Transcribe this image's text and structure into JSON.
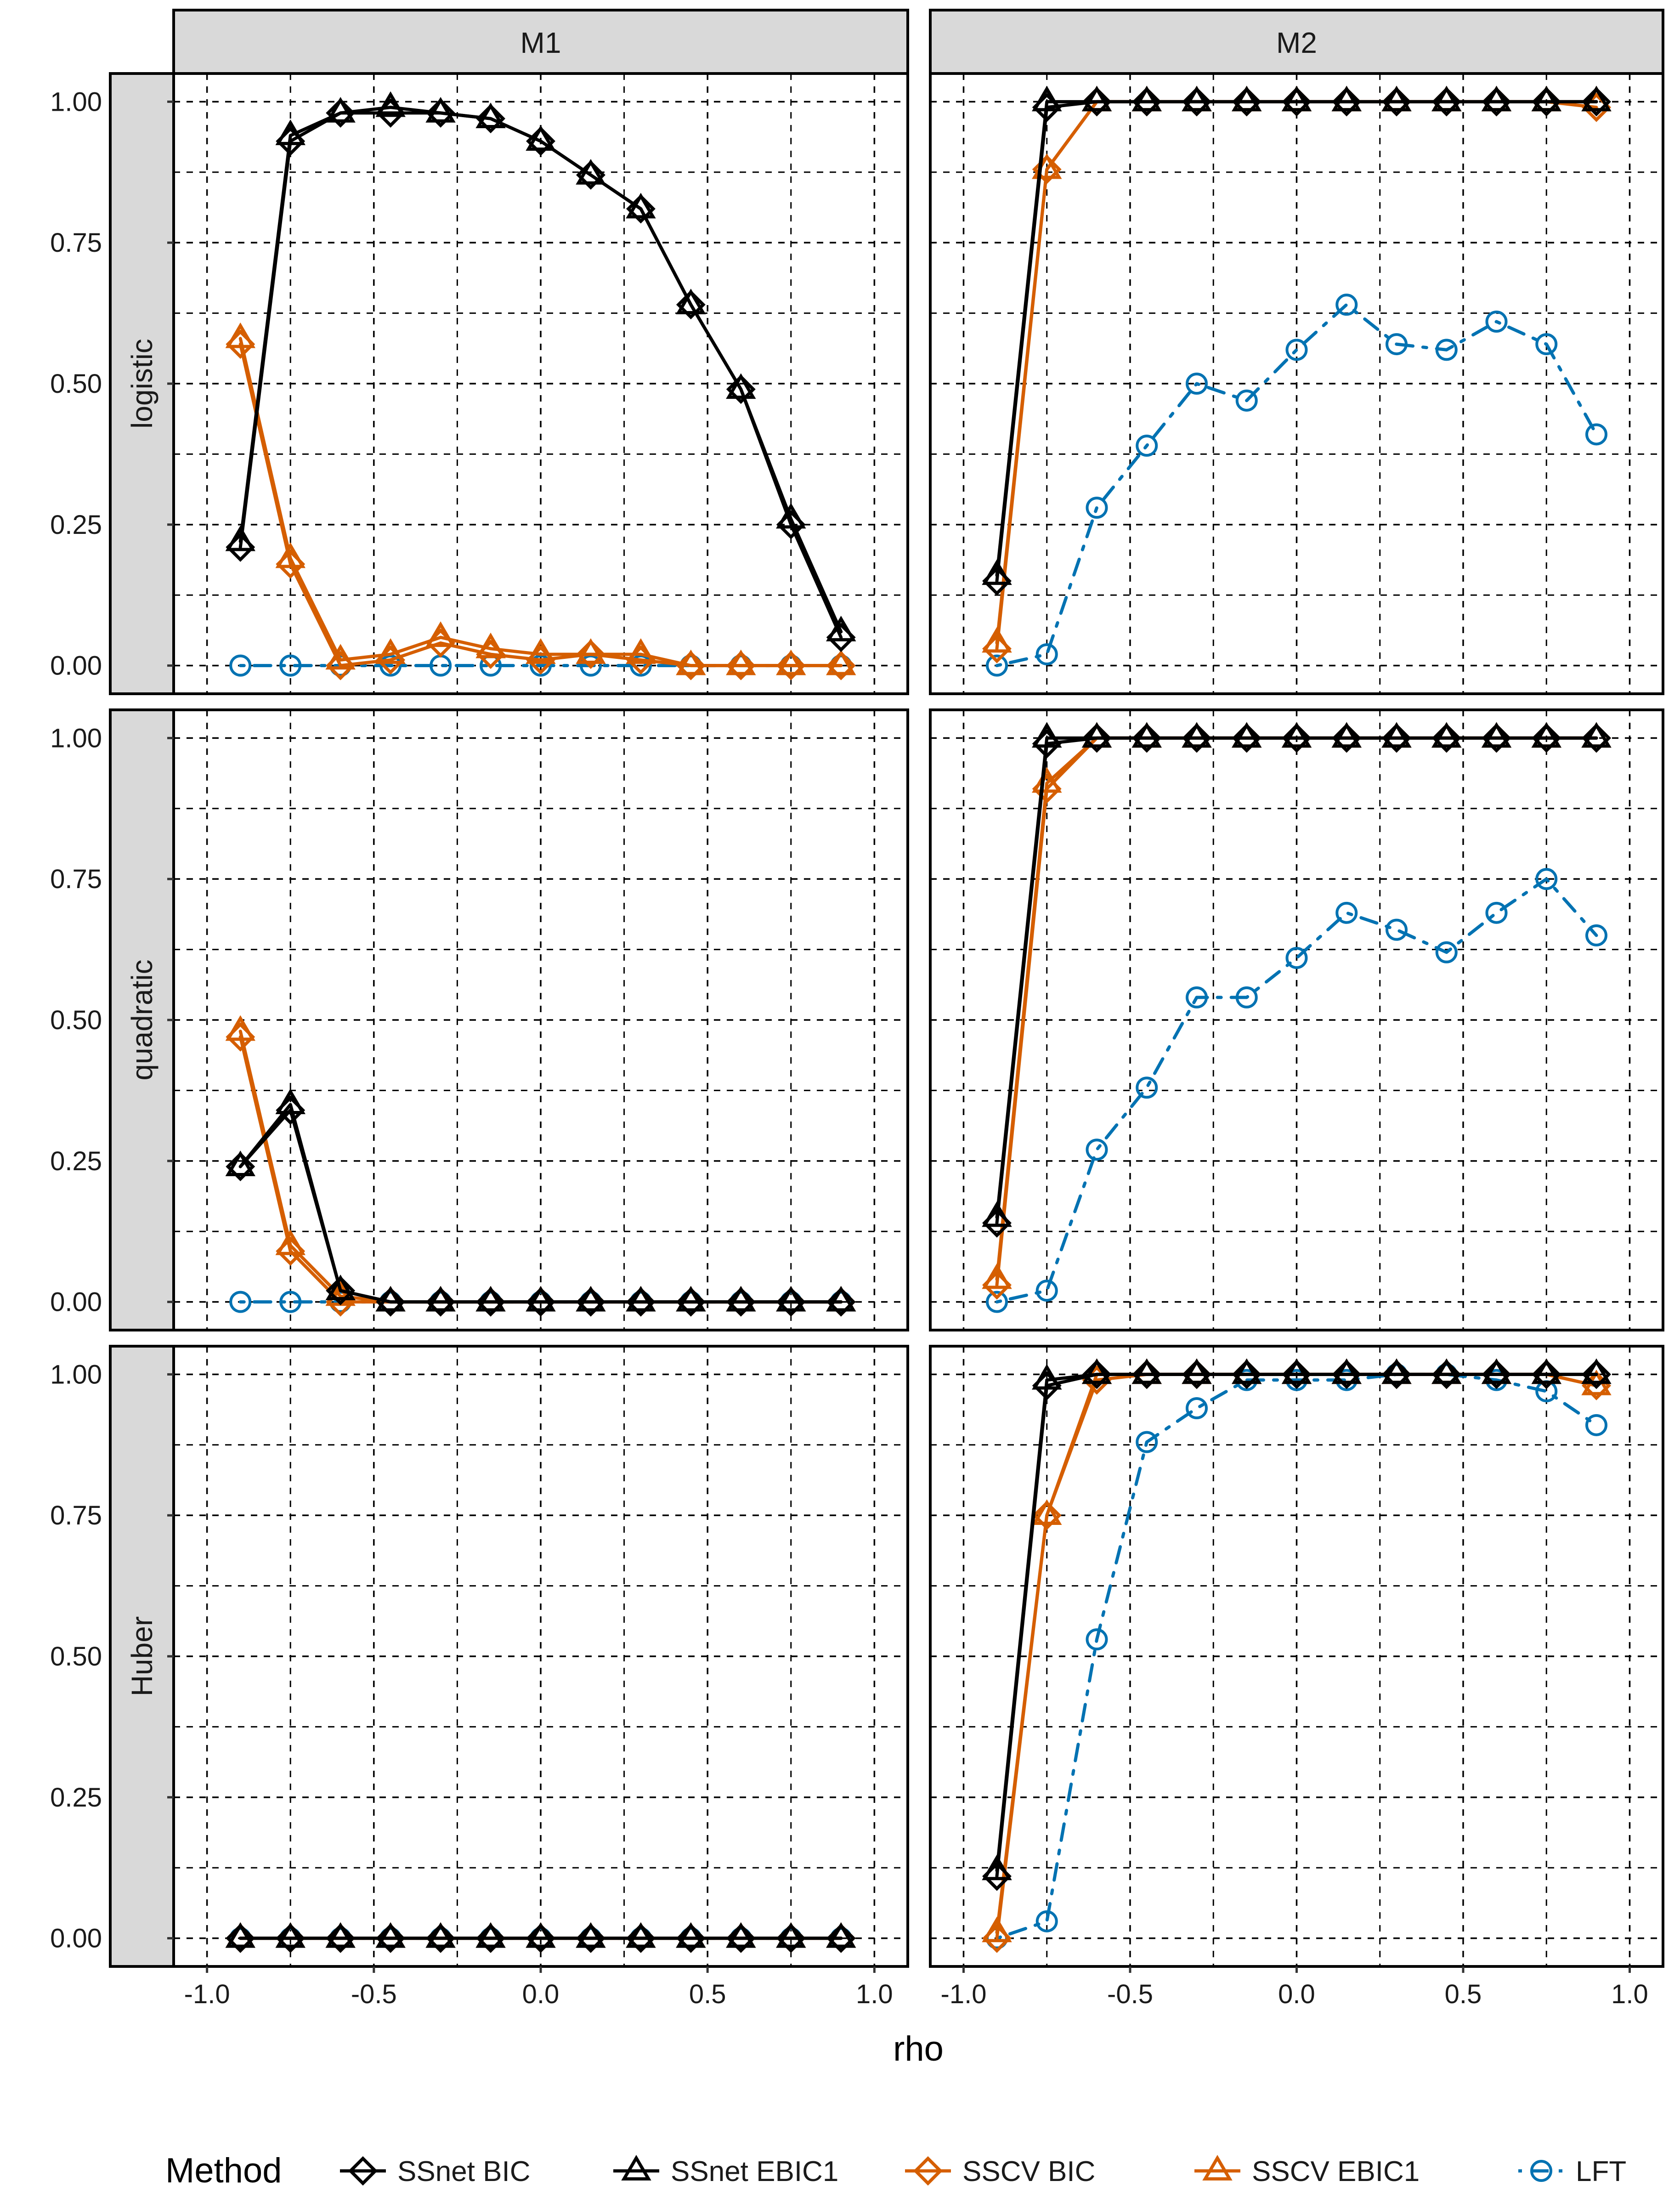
{
  "chart_data": {
    "type": "line",
    "facets": {
      "columns": [
        "M1",
        "M2"
      ],
      "rows": [
        "logistic",
        "quadratic",
        "Huber"
      ]
    },
    "x": [
      -0.9,
      -0.75,
      -0.6,
      -0.45,
      -0.3,
      -0.15,
      0.0,
      0.15,
      0.3,
      0.45,
      0.6,
      0.75,
      0.9
    ],
    "xlabel": "rho",
    "ylabel": "",
    "xlim": [
      -1.1,
      1.1
    ],
    "ylim": [
      -0.05,
      1.05
    ],
    "x_ticks": [
      -1.0,
      -0.5,
      0.0,
      0.5,
      1.0
    ],
    "x_tick_labels": [
      "-1.0",
      "-0.5",
      "0.0",
      "0.5",
      "1.0"
    ],
    "y_ticks": [
      0.0,
      0.25,
      0.5,
      0.75,
      1.0
    ],
    "y_tick_labels": [
      "0.00",
      "0.25",
      "0.50",
      "0.75",
      "1.00"
    ],
    "grid": "dashed major and minor",
    "legend": {
      "position": "bottom",
      "title": "Method",
      "entries": [
        "SSnet BIC",
        "SSnet EBIC1",
        "SSCV BIC",
        "SSCV EBIC1",
        "LFT"
      ]
    },
    "colors": {
      "SSnet": "#000000",
      "SSCV": "#D55E00",
      "LFT": "#0072B2",
      "strip_bg": "#D9D9D9"
    },
    "panels": [
      {
        "row": "logistic",
        "column": "M1",
        "series": [
          {
            "name": "SSnet BIC",
            "values": [
              0.21,
              0.93,
              0.98,
              0.98,
              0.98,
              0.97,
              0.93,
              0.87,
              0.81,
              0.64,
              0.49,
              0.25,
              0.05
            ]
          },
          {
            "name": "SSnet EBIC1",
            "values": [
              0.22,
              0.94,
              0.98,
              0.99,
              0.98,
              0.97,
              0.93,
              0.87,
              0.81,
              0.64,
              0.49,
              0.26,
              0.06
            ]
          },
          {
            "name": "SSCV BIC",
            "values": [
              0.57,
              0.18,
              0.0,
              0.01,
              0.04,
              0.02,
              0.01,
              0.02,
              0.01,
              0.0,
              0.0,
              0.0,
              0.0
            ]
          },
          {
            "name": "SSCV EBIC1",
            "values": [
              0.58,
              0.19,
              0.01,
              0.02,
              0.05,
              0.03,
              0.02,
              0.02,
              0.02,
              0.0,
              0.0,
              0.0,
              0.0
            ]
          },
          {
            "name": "LFT",
            "values": [
              0.0,
              0.0,
              0.0,
              0.0,
              0.0,
              0.0,
              0.0,
              0.0,
              0.0,
              0.0,
              0.0,
              0.0,
              0.0
            ]
          }
        ]
      },
      {
        "row": "logistic",
        "column": "M2",
        "series": [
          {
            "name": "SSnet BIC",
            "values": [
              0.15,
              0.99,
              1.0,
              1.0,
              1.0,
              1.0,
              1.0,
              1.0,
              1.0,
              1.0,
              1.0,
              1.0,
              1.0
            ]
          },
          {
            "name": "SSnet EBIC1",
            "values": [
              0.16,
              1.0,
              1.0,
              1.0,
              1.0,
              1.0,
              1.0,
              1.0,
              1.0,
              1.0,
              1.0,
              1.0,
              1.0
            ]
          },
          {
            "name": "SSCV BIC",
            "values": [
              0.03,
              0.88,
              1.0,
              1.0,
              1.0,
              1.0,
              1.0,
              1.0,
              1.0,
              1.0,
              1.0,
              1.0,
              0.99
            ]
          },
          {
            "name": "SSCV EBIC1",
            "values": [
              0.04,
              0.88,
              1.0,
              1.0,
              1.0,
              1.0,
              1.0,
              1.0,
              1.0,
              1.0,
              1.0,
              1.0,
              1.0
            ]
          },
          {
            "name": "LFT",
            "values": [
              0.0,
              0.02,
              0.28,
              0.39,
              0.5,
              0.47,
              0.56,
              0.64,
              0.57,
              0.56,
              0.61,
              0.57,
              0.41
            ]
          }
        ]
      },
      {
        "row": "quadratic",
        "column": "M1",
        "series": [
          {
            "name": "SSnet BIC",
            "values": [
              0.24,
              0.34,
              0.02,
              0.0,
              0.0,
              0.0,
              0.0,
              0.0,
              0.0,
              0.0,
              0.0,
              0.0,
              0.0
            ]
          },
          {
            "name": "SSnet EBIC1",
            "values": [
              0.24,
              0.35,
              0.02,
              0.0,
              0.0,
              0.0,
              0.0,
              0.0,
              0.0,
              0.0,
              0.0,
              0.0,
              0.0
            ]
          },
          {
            "name": "SSCV BIC",
            "values": [
              0.47,
              0.09,
              0.0,
              0.0,
              0.0,
              0.0,
              0.0,
              0.0,
              0.0,
              0.0,
              0.0,
              0.0,
              0.0
            ]
          },
          {
            "name": "SSCV EBIC1",
            "values": [
              0.48,
              0.1,
              0.01,
              0.0,
              0.0,
              0.0,
              0.0,
              0.0,
              0.0,
              0.0,
              0.0,
              0.0,
              0.0
            ]
          },
          {
            "name": "LFT",
            "values": [
              0.0,
              0.0,
              0.0,
              0.0,
              0.0,
              0.0,
              0.0,
              0.0,
              0.0,
              0.0,
              0.0,
              0.0,
              0.0
            ]
          }
        ]
      },
      {
        "row": "quadratic",
        "column": "M2",
        "series": [
          {
            "name": "SSnet BIC",
            "values": [
              0.14,
              0.99,
              1.0,
              1.0,
              1.0,
              1.0,
              1.0,
              1.0,
              1.0,
              1.0,
              1.0,
              1.0,
              1.0
            ]
          },
          {
            "name": "SSnet EBIC1",
            "values": [
              0.15,
              1.0,
              1.0,
              1.0,
              1.0,
              1.0,
              1.0,
              1.0,
              1.0,
              1.0,
              1.0,
              1.0,
              1.0
            ]
          },
          {
            "name": "SSCV BIC",
            "values": [
              0.03,
              0.91,
              1.0,
              1.0,
              1.0,
              1.0,
              1.0,
              1.0,
              1.0,
              1.0,
              1.0,
              1.0,
              1.0
            ]
          },
          {
            "name": "SSCV EBIC1",
            "values": [
              0.04,
              0.92,
              1.0,
              1.0,
              1.0,
              1.0,
              1.0,
              1.0,
              1.0,
              1.0,
              1.0,
              1.0,
              1.0
            ]
          },
          {
            "name": "LFT",
            "values": [
              0.0,
              0.02,
              0.27,
              0.38,
              0.54,
              0.54,
              0.61,
              0.69,
              0.66,
              0.62,
              0.69,
              0.75,
              0.65
            ]
          }
        ]
      },
      {
        "row": "Huber",
        "column": "M1",
        "series": [
          {
            "name": "SSnet BIC",
            "values": [
              0.0,
              0.0,
              0.0,
              0.0,
              0.0,
              0.0,
              0.0,
              0.0,
              0.0,
              0.0,
              0.0,
              0.0,
              0.0
            ]
          },
          {
            "name": "SSnet EBIC1",
            "values": [
              0.0,
              0.0,
              0.0,
              0.0,
              0.0,
              0.0,
              0.0,
              0.0,
              0.0,
              0.0,
              0.0,
              0.0,
              0.0
            ]
          },
          {
            "name": "SSCV BIC",
            "values": [
              0.0,
              0.0,
              0.0,
              0.0,
              0.0,
              0.0,
              0.0,
              0.0,
              0.0,
              0.0,
              0.0,
              0.0,
              0.0
            ]
          },
          {
            "name": "SSCV EBIC1",
            "values": [
              0.0,
              0.0,
              0.0,
              0.0,
              0.0,
              0.0,
              0.0,
              0.0,
              0.0,
              0.0,
              0.0,
              0.0,
              0.0
            ]
          },
          {
            "name": "LFT",
            "values": [
              0.0,
              0.0,
              0.0,
              0.0,
              0.0,
              0.0,
              0.0,
              0.0,
              0.0,
              0.0,
              0.0,
              0.0,
              0.0
            ]
          }
        ]
      },
      {
        "row": "Huber",
        "column": "M2",
        "series": [
          {
            "name": "SSnet BIC",
            "values": [
              0.11,
              0.98,
              1.0,
              1.0,
              1.0,
              1.0,
              1.0,
              1.0,
              1.0,
              1.0,
              1.0,
              1.0,
              1.0
            ]
          },
          {
            "name": "SSnet EBIC1",
            "values": [
              0.12,
              0.99,
              1.0,
              1.0,
              1.0,
              1.0,
              1.0,
              1.0,
              1.0,
              1.0,
              1.0,
              1.0,
              1.0
            ]
          },
          {
            "name": "SSCV BIC",
            "values": [
              0.0,
              0.75,
              0.99,
              1.0,
              1.0,
              1.0,
              1.0,
              1.0,
              1.0,
              1.0,
              1.0,
              1.0,
              0.98
            ]
          },
          {
            "name": "SSCV EBIC1",
            "values": [
              0.01,
              0.75,
              1.0,
              1.0,
              1.0,
              1.0,
              1.0,
              1.0,
              1.0,
              1.0,
              1.0,
              1.0,
              0.98
            ]
          },
          {
            "name": "LFT",
            "values": [
              0.0,
              0.03,
              0.53,
              0.88,
              0.94,
              0.99,
              0.99,
              0.99,
              1.0,
              1.0,
              0.99,
              0.97,
              0.91
            ]
          }
        ]
      }
    ]
  }
}
